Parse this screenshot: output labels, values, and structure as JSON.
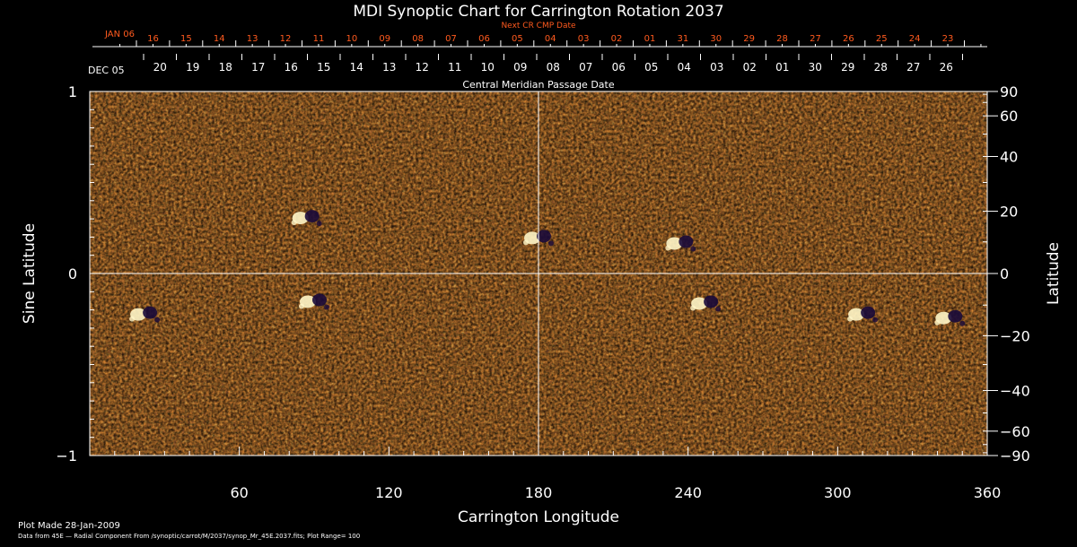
{
  "chart_data": {
    "type": "heatmap",
    "title": "MDI Synoptic Chart for Carrington Rotation 2037",
    "xlabel": "Carrington Longitude",
    "ylabel_left": "Sine Latitude",
    "ylabel_right": "Latitude",
    "xlim": [
      0,
      360
    ],
    "ylim": [
      -1,
      1
    ],
    "x_ticks": [
      "60",
      "120",
      "180",
      "240",
      "300",
      "360"
    ],
    "x_tick_values": [
      60,
      120,
      180,
      240,
      300,
      360
    ],
    "y_left_ticks": [
      "1",
      "0",
      "−1"
    ],
    "y_left_tick_values": [
      1,
      0,
      -1
    ],
    "y_right_ticks": [
      "90",
      "60",
      "40",
      "20",
      "0",
      "−20",
      "−40",
      "−60",
      "−90"
    ],
    "y_right_tick_values": [
      90,
      60,
      40,
      20,
      0,
      -20,
      -40,
      -60,
      -90
    ],
    "top_axis_label": "Next CR CMP Date",
    "top_axis_first_label": "JAN 06",
    "top_axis_days": [
      "16",
      "15",
      "14",
      "13",
      "12",
      "11",
      "10",
      "09",
      "08",
      "07",
      "06",
      "05",
      "04",
      "03",
      "02",
      "01",
      "31",
      "30",
      "29",
      "28",
      "27",
      "26",
      "25",
      "24",
      "23"
    ],
    "bottom_date_axis_label": "Central Meridian Passage Date",
    "bottom_date_axis_first_label": "DEC 05",
    "bottom_date_axis_days": [
      "20",
      "19",
      "18",
      "17",
      "16",
      "15",
      "14",
      "13",
      "12",
      "11",
      "10",
      "09",
      "08",
      "07",
      "06",
      "05",
      "04",
      "03",
      "02",
      "01",
      "30",
      "29",
      "28",
      "27",
      "26"
    ],
    "grid": false,
    "reference_lines": [
      {
        "axis": "x",
        "value": 180
      },
      {
        "axis": "y",
        "value": 0
      }
    ],
    "active_regions": [
      {
        "longitude": 87,
        "sine_latitude": 0.31
      },
      {
        "longitude": 180,
        "sine_latitude": 0.2
      },
      {
        "longitude": 237,
        "sine_latitude": 0.17
      },
      {
        "longitude": 90,
        "sine_latitude": -0.15
      },
      {
        "longitude": 247,
        "sine_latitude": -0.16
      },
      {
        "longitude": 345,
        "sine_latitude": -0.24
      },
      {
        "longitude": 22,
        "sine_latitude": -0.22
      },
      {
        "longitude": 310,
        "sine_latitude": -0.22
      }
    ],
    "colors": {
      "background": "#ff4f10",
      "dark": "#1a0a3a",
      "bright": "#fff6c8"
    }
  },
  "footer": {
    "plot_made": "Plot Made 28-Jan-2009",
    "data_source": "Data from 45E — Radial Component From /synoptic/carrot/M/2037/synop_Mr_45E.2037.fits; Plot Range=  100"
  }
}
